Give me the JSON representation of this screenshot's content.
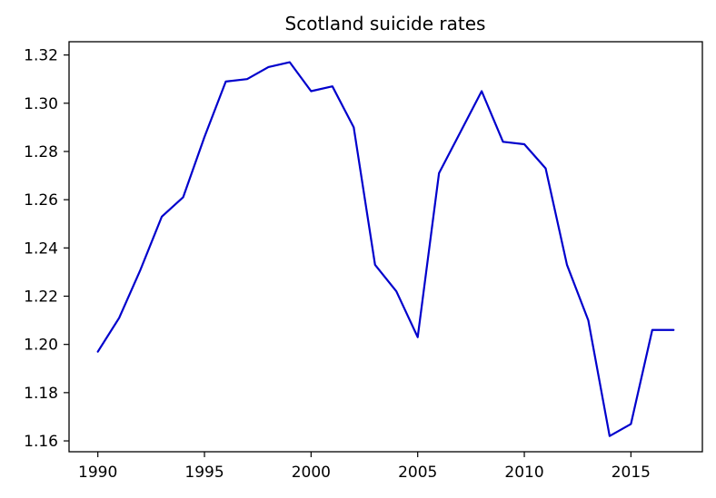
{
  "chart_data": {
    "type": "line",
    "title": "Scotland suicide rates",
    "xlabel": "",
    "ylabel": "",
    "xlim": [
      1988.65,
      2018.35
    ],
    "ylim": [
      1.1555,
      1.3255
    ],
    "x_ticks": [
      1990,
      1995,
      2000,
      2005,
      2010,
      2015
    ],
    "x_tick_labels": [
      "1990",
      "1995",
      "2000",
      "2005",
      "2010",
      "2015"
    ],
    "y_ticks": [
      1.16,
      1.18,
      1.2,
      1.22,
      1.24,
      1.26,
      1.28,
      1.3,
      1.32
    ],
    "y_tick_labels": [
      "1.16",
      "1.18",
      "1.20",
      "1.22",
      "1.24",
      "1.26",
      "1.28",
      "1.30",
      "1.32"
    ],
    "grid": false,
    "legend": "none",
    "series": [
      {
        "color": "#0000cc",
        "x": [
          1990,
          1991,
          1992,
          1993,
          1994,
          1995,
          1996,
          1997,
          1998,
          1999,
          2000,
          2001,
          2002,
          2003,
          2004,
          2005,
          2006,
          2007,
          2008,
          2009,
          2010,
          2011,
          2012,
          2013,
          2014,
          2015,
          2016,
          2017
        ],
        "y": [
          1.197,
          1.211,
          1.231,
          1.253,
          1.261,
          1.286,
          1.309,
          1.31,
          1.315,
          1.317,
          1.305,
          1.307,
          1.29,
          1.233,
          1.222,
          1.203,
          1.271,
          1.288,
          1.305,
          1.284,
          1.283,
          1.273,
          1.233,
          1.21,
          1.162,
          1.167,
          1.206,
          1.206
        ]
      }
    ]
  }
}
